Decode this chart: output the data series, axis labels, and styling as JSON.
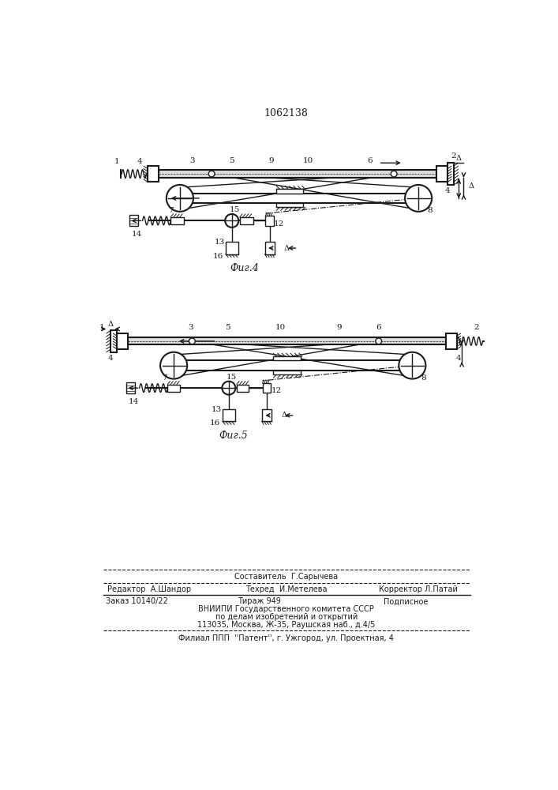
{
  "title": "1062138",
  "fig4_label": "Фиг.4",
  "fig5_label": "Фиг.5",
  "bg_color": "#ffffff",
  "line_color": "#1a1a1a",
  "footer_line1": "Составитель  Г.Сарычева",
  "footer_line2a": "Редактор  А.Шандор",
  "footer_line2b": "Техред  И.Метелева",
  "footer_line2c": "Корректор Л.Патай",
  "footer_line3a": "Заказ 10140/22",
  "footer_line3b": "Тираж 949",
  "footer_line3c": "Подписное",
  "footer_line4": "ВНИИПИ Государственного комитета СССР",
  "footer_line5": "по делам изобретений и открытий",
  "footer_line6": "113035, Москва, Ж-35, Раушская наб., д.4/5",
  "footer_line7": "Филиал ППП  ''Патент'', г. Ужгород, ул. Проектная, 4"
}
